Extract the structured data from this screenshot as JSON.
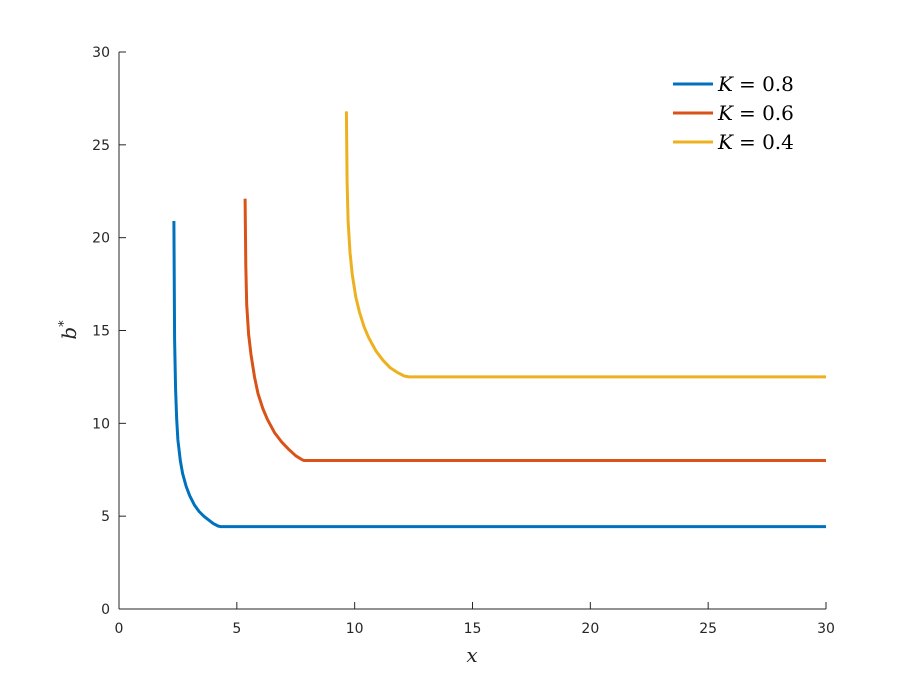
{
  "chart_data": {
    "type": "line",
    "title": "",
    "xlabel": "x",
    "ylabel": "b*",
    "xlim": [
      0,
      30
    ],
    "ylim": [
      0,
      30
    ],
    "xticks": [
      0,
      5,
      10,
      15,
      20,
      25,
      30
    ],
    "yticks": [
      0,
      5,
      10,
      15,
      20,
      25,
      30
    ],
    "grid": false,
    "legend_position": "top-right",
    "series": [
      {
        "name": "K = 0.8",
        "legend_var": "K",
        "legend_val": "= 0.8",
        "color": "#0072BD",
        "x": [
          2.33,
          2.36,
          2.4,
          2.45,
          2.5,
          2.6,
          2.7,
          2.85,
          3.0,
          3.2,
          3.4,
          3.6,
          3.8,
          4.0,
          4.2,
          4.3,
          30
        ],
        "y": [
          20.9,
          14.5,
          11.8,
          10.2,
          9.1,
          8.0,
          7.3,
          6.6,
          6.1,
          5.6,
          5.25,
          5.0,
          4.8,
          4.6,
          4.47,
          4.44,
          4.44
        ]
      },
      {
        "name": "K = 0.6",
        "legend_var": "K",
        "legend_val": "= 0.6",
        "color": "#D95319",
        "x": [
          5.35,
          5.38,
          5.42,
          5.5,
          5.6,
          5.75,
          5.9,
          6.1,
          6.3,
          6.6,
          6.9,
          7.2,
          7.5,
          7.8,
          7.85,
          30
        ],
        "y": [
          22.1,
          18.5,
          16.4,
          14.8,
          13.7,
          12.5,
          11.6,
          10.8,
          10.2,
          9.5,
          9.0,
          8.6,
          8.25,
          8.02,
          8.0,
          8.0
        ]
      },
      {
        "name": "K = 0.4",
        "legend_var": "K",
        "legend_val": "= 0.4",
        "color": "#EDB120",
        "x": [
          9.65,
          9.68,
          9.72,
          9.8,
          9.9,
          10.05,
          10.2,
          10.4,
          10.6,
          10.9,
          11.2,
          11.5,
          11.8,
          12.1,
          12.3,
          30
        ],
        "y": [
          26.8,
          23.0,
          20.9,
          19.2,
          18.0,
          16.8,
          16.0,
          15.2,
          14.6,
          13.9,
          13.4,
          13.0,
          12.75,
          12.55,
          12.5,
          12.5
        ]
      }
    ]
  }
}
